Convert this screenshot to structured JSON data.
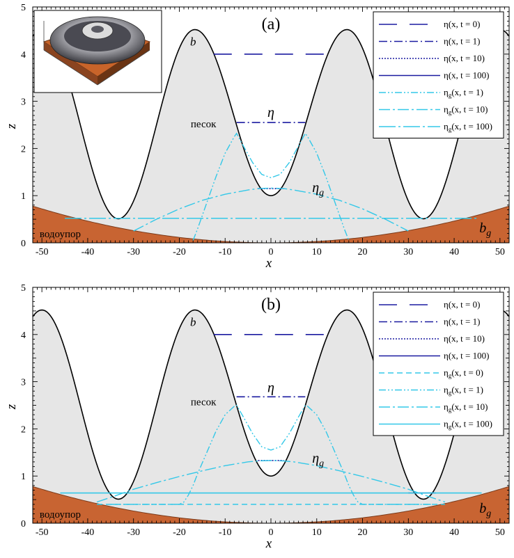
{
  "colors": {
    "sand": "#e6e6e6",
    "aquitard": "#c86432",
    "aquitard_edge": "#7a3a1a",
    "bed": "#000000",
    "eta": "#1a1aa0",
    "eta_g": "#33c8e8"
  },
  "chart_data": [
    {
      "type": "line",
      "panel_label": "(a)",
      "xlabel": "x",
      "ylabel": "z",
      "xlim": [
        -52,
        52
      ],
      "ylim": [
        0,
        5
      ],
      "xticks": [
        -50,
        -40,
        -30,
        -20,
        -10,
        0,
        10,
        20,
        30,
        40,
        50
      ],
      "yticks": [
        0,
        1,
        2,
        3,
        4,
        5
      ],
      "has_inset": true,
      "annotations": {
        "b": "b",
        "eta": "η",
        "eta_g": "η",
        "eta_g_sub": "g",
        "b_g": "b",
        "b_g_sub": "g",
        "sand": "песок",
        "aquitard": "водоупор"
      },
      "legend": [
        {
          "text": "η(x, t = 0)",
          "base": "η",
          "sub": "",
          "arg": "(x, t = 0)",
          "dash": "26 18",
          "width": 1.6,
          "color": "eta"
        },
        {
          "text": "η(x, t = 1)",
          "base": "η",
          "sub": "",
          "arg": "(x, t = 1)",
          "dash": "12 4 2 4",
          "width": 1.6,
          "color": "eta"
        },
        {
          "text": "η(x, t = 10)",
          "base": "η",
          "sub": "",
          "arg": "(x, t = 10)",
          "dash": "2 2",
          "width": 1.6,
          "color": "eta"
        },
        {
          "text": "η(x, t = 100)",
          "base": "η",
          "sub": "",
          "arg": "(x, t = 100)",
          "dash": "",
          "width": 1.6,
          "color": "eta"
        },
        {
          "text": "ηg(x, t = 1)",
          "base": "η",
          "sub": "g",
          "arg": "(x, t = 1)",
          "dash": "10 3 2 3 2 3",
          "width": 1.4,
          "color": "eta_g"
        },
        {
          "text": "ηg(x, t = 10)",
          "base": "η",
          "sub": "g",
          "arg": "(x, t = 10)",
          "dash": "16 4 3 4",
          "width": 1.4,
          "color": "eta_g"
        },
        {
          "text": "ηg(x, t = 100)",
          "base": "η",
          "sub": "g",
          "arg": "(x, t = 100)",
          "dash": "24 4 3 4",
          "width": 1.4,
          "color": "eta_g"
        }
      ],
      "series": [
        {
          "name": "η(x, t = 0)",
          "style": 0,
          "x": [
            -12.5,
            12.5
          ],
          "y": [
            4.0,
            4.0
          ]
        },
        {
          "name": "η(x, t = 1)",
          "style": 1,
          "x": [
            -7.5,
            7.5
          ],
          "y": [
            2.55,
            2.55
          ]
        },
        {
          "name": "η(x, t = 10)",
          "style": 2,
          "x": [
            -2.8,
            2.8
          ],
          "y": [
            1.15,
            1.15
          ]
        },
        {
          "name": "η(x, t = 100)",
          "style": 3,
          "x": [],
          "y": []
        },
        {
          "name": "ηg(x, t = 1)",
          "style": 4,
          "x": [
            -17,
            -16,
            -14,
            -12,
            -10,
            -8,
            -7.5,
            -6,
            -4,
            -2,
            0,
            2,
            4,
            6,
            7.5,
            8,
            10,
            12,
            14,
            16,
            17
          ],
          "y": [
            0.05,
            0.3,
            0.85,
            1.4,
            1.9,
            2.25,
            2.32,
            2.05,
            1.7,
            1.45,
            1.38,
            1.45,
            1.7,
            2.05,
            2.32,
            2.25,
            1.9,
            1.4,
            0.85,
            0.3,
            0.05
          ]
        },
        {
          "name": "ηg(x, t = 10)",
          "style": 5,
          "x": [
            -30,
            -25,
            -20,
            -15,
            -10,
            -5,
            -2.8,
            0,
            2.8,
            5,
            10,
            15,
            20,
            25,
            30
          ],
          "y": [
            0.25,
            0.5,
            0.72,
            0.9,
            1.03,
            1.12,
            1.15,
            1.16,
            1.15,
            1.12,
            1.03,
            0.9,
            0.72,
            0.5,
            0.25
          ]
        },
        {
          "name": "ηg(x, t = 100)",
          "style": 6,
          "x": [
            -45,
            45
          ],
          "y": [
            0.52,
            0.52
          ]
        }
      ]
    },
    {
      "type": "line",
      "panel_label": "(b)",
      "xlabel": "x",
      "ylabel": "z",
      "xlim": [
        -52,
        52
      ],
      "ylim": [
        0,
        5
      ],
      "xticks": [
        -50,
        -40,
        -30,
        -20,
        -10,
        0,
        10,
        20,
        30,
        40,
        50
      ],
      "yticks": [
        0,
        1,
        2,
        3,
        4,
        5
      ],
      "has_inset": false,
      "annotations": {
        "b": "b",
        "eta": "η",
        "eta_g": "η",
        "eta_g_sub": "g",
        "b_g": "b",
        "b_g_sub": "g",
        "sand": "песок",
        "aquitard": "водоупор"
      },
      "legend": [
        {
          "text": "η(x, t = 0)",
          "base": "η",
          "sub": "",
          "arg": "(x, t = 0)",
          "dash": "26 18",
          "width": 1.6,
          "color": "eta"
        },
        {
          "text": "η(x, t = 1)",
          "base": "η",
          "sub": "",
          "arg": "(x, t = 1)",
          "dash": "12 4 2 4",
          "width": 1.6,
          "color": "eta"
        },
        {
          "text": "η(x, t = 10)",
          "base": "η",
          "sub": "",
          "arg": "(x, t = 10)",
          "dash": "2 2",
          "width": 1.6,
          "color": "eta"
        },
        {
          "text": "η(x, t = 100)",
          "base": "η",
          "sub": "",
          "arg": "(x, t = 100)",
          "dash": "",
          "width": 1.6,
          "color": "eta"
        },
        {
          "text": "ηg(x, t = 0)",
          "base": "η",
          "sub": "g",
          "arg": "(x, t = 0)",
          "dash": "8 5",
          "width": 1.4,
          "color": "eta_g"
        },
        {
          "text": "ηg(x, t = 1)",
          "base": "η",
          "sub": "g",
          "arg": "(x, t = 1)",
          "dash": "10 3 2 3 2 3",
          "width": 1.4,
          "color": "eta_g"
        },
        {
          "text": "ηg(x, t = 10)",
          "base": "η",
          "sub": "g",
          "arg": "(x, t = 10)",
          "dash": "16 4 3 4",
          "width": 1.4,
          "color": "eta_g"
        },
        {
          "text": "ηg(x, t = 100)",
          "base": "η",
          "sub": "g",
          "arg": "(x, t = 100)",
          "dash": "",
          "width": 1.6,
          "color": "eta_g"
        }
      ],
      "series": [
        {
          "name": "η(x, t = 0)",
          "style": 0,
          "x": [
            -12.5,
            12.5
          ],
          "y": [
            4.0,
            4.0
          ]
        },
        {
          "name": "η(x, t = 1)",
          "style": 1,
          "x": [
            -7.5,
            7.5
          ],
          "y": [
            2.68,
            2.68
          ]
        },
        {
          "name": "η(x, t = 10)",
          "style": 2,
          "x": [
            -2.8,
            2.8
          ],
          "y": [
            1.33,
            1.33
          ]
        },
        {
          "name": "η(x, t = 100)",
          "style": 3,
          "x": [
            30,
            36
          ],
          "y": [
            0.64,
            0.64
          ]
        },
        {
          "name": "ηg(x, t = 0)",
          "style": 4,
          "x": [
            -38,
            38
          ],
          "y": [
            0.4,
            0.4
          ]
        },
        {
          "name": "ηg(x, t = 1)",
          "style": 5,
          "x": [
            -35,
            -20,
            -19,
            -18,
            -17,
            -16,
            -14,
            -12,
            -10,
            -8,
            -7.5,
            -6,
            -4,
            -2,
            0,
            2,
            4,
            6,
            7.5,
            8,
            10,
            12,
            14,
            16,
            17,
            18,
            19,
            20,
            35
          ],
          "y": [
            0.4,
            0.4,
            0.45,
            0.6,
            0.8,
            1.05,
            1.5,
            1.95,
            2.3,
            2.48,
            2.5,
            2.25,
            1.9,
            1.62,
            1.55,
            1.62,
            1.9,
            2.25,
            2.5,
            2.48,
            2.3,
            1.95,
            1.5,
            1.05,
            0.8,
            0.6,
            0.45,
            0.4,
            0.4
          ]
        },
        {
          "name": "ηg(x, t = 10)",
          "style": 6,
          "x": [
            -38,
            -34,
            -30,
            -25,
            -20,
            -15,
            -10,
            -5,
            -2.8,
            0,
            2.8,
            5,
            10,
            15,
            20,
            25,
            30,
            34,
            38
          ],
          "y": [
            0.45,
            0.58,
            0.72,
            0.86,
            0.99,
            1.11,
            1.22,
            1.3,
            1.32,
            1.33,
            1.32,
            1.3,
            1.22,
            1.11,
            0.99,
            0.86,
            0.72,
            0.58,
            0.45
          ]
        },
        {
          "name": "ηg(x, t = 100)",
          "style": 7,
          "x": [
            -46,
            46
          ],
          "y": [
            0.64,
            0.64
          ]
        }
      ]
    }
  ]
}
